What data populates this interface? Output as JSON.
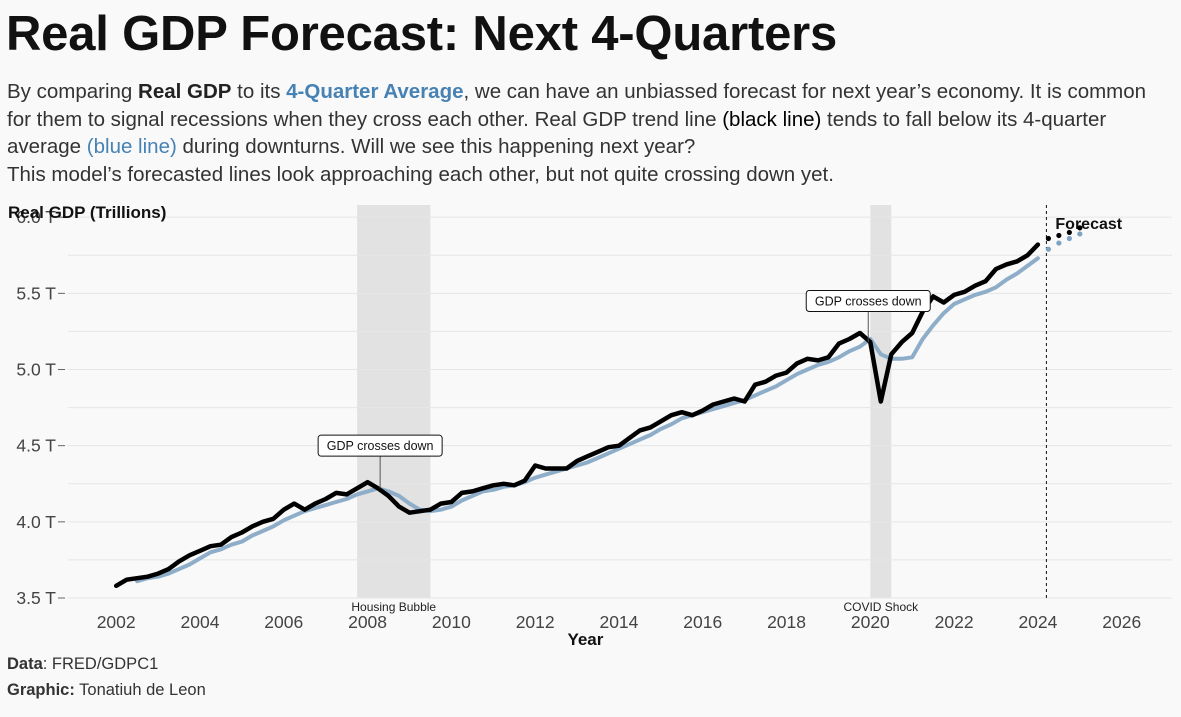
{
  "header": {
    "title": "Real GDP Forecast: Next 4-Quarters",
    "subtitle": {
      "p1": "By comparing ",
      "real_gdp": "Real GDP",
      "p2": " to its ",
      "avg": "4-Quarter Average",
      "p3": ", we can have an unbiassed forecast for next year’s economy. It is common for them to signal recessions when they cross each other. Real GDP trend line ",
      "black_line": "(black line)",
      "p4": " tends to fall below its 4-quarter average ",
      "blue_line": "(blue line)",
      "p5": " during downturns. Will we see this happening next year?",
      "p6": "This model’s forecasted lines look approaching each other, but not quite crossing down yet."
    }
  },
  "footer": {
    "data_label": "Data",
    "data_value": ": FRED/GDPC1",
    "graphic_label": "Graphic:",
    "graphic_value": " Tonatiuh de Leon"
  },
  "colors": {
    "gdp_line": "#000000",
    "avg_line": "#8eadc9",
    "avg_forecast": "#7ea2c4",
    "recession_shade": "#e2e2e2",
    "grid": "#e6e6e6"
  },
  "chart_data": {
    "type": "line",
    "ylabel": "Real GDP (Trillions)",
    "xlabel": "Year",
    "xlim": [
      2000.85,
      2027.2
    ],
    "ylim": [
      3.5,
      6.08
    ],
    "x_ticks": [
      2002,
      2004,
      2006,
      2008,
      2010,
      2012,
      2014,
      2016,
      2018,
      2020,
      2022,
      2024,
      2026
    ],
    "x_tick_labels": [
      "2002",
      "2004",
      "2006",
      "2008",
      "2010",
      "2012",
      "2014",
      "2016",
      "2018",
      "2020",
      "2022",
      "2024",
      "2026"
    ],
    "y_ticks": [
      3.5,
      4.0,
      4.5,
      5.0,
      5.5,
      6.0
    ],
    "y_tick_labels": [
      "3.5 T",
      "4.0 T",
      "4.5 T",
      "5.0 T",
      "5.5 T",
      "6.0 T"
    ],
    "grid": true,
    "recessions": [
      {
        "label": "Housing Bubble",
        "start": 2007.75,
        "end": 2009.5
      },
      {
        "label": "COVID Shock",
        "start": 2020.0,
        "end": 2020.5
      }
    ],
    "annotations": [
      {
        "text": "GDP crosses down",
        "x": 2008.3,
        "y": 4.22,
        "label_y": 4.5
      },
      {
        "text": "GDP crosses down",
        "x": 2019.95,
        "y": 5.18,
        "label_y": 5.45
      }
    ],
    "forecast": {
      "label": "Forecast",
      "start": 2024.25
    },
    "series": [
      {
        "name": "Real GDP",
        "x": [
          2002.0,
          2002.25,
          2002.5,
          2002.75,
          2003.0,
          2003.25,
          2003.5,
          2003.75,
          2004.0,
          2004.25,
          2004.5,
          2004.75,
          2005.0,
          2005.25,
          2005.5,
          2005.75,
          2006.0,
          2006.25,
          2006.5,
          2006.75,
          2007.0,
          2007.25,
          2007.5,
          2007.75,
          2008.0,
          2008.25,
          2008.5,
          2008.75,
          2009.0,
          2009.25,
          2009.5,
          2009.75,
          2010.0,
          2010.25,
          2010.5,
          2010.75,
          2011.0,
          2011.25,
          2011.5,
          2011.75,
          2012.0,
          2012.25,
          2012.5,
          2012.75,
          2013.0,
          2013.25,
          2013.5,
          2013.75,
          2014.0,
          2014.25,
          2014.5,
          2014.75,
          2015.0,
          2015.25,
          2015.5,
          2015.75,
          2016.0,
          2016.25,
          2016.5,
          2016.75,
          2017.0,
          2017.25,
          2017.5,
          2017.75,
          2018.0,
          2018.25,
          2018.5,
          2018.75,
          2019.0,
          2019.25,
          2019.5,
          2019.75,
          2020.0,
          2020.25,
          2020.5,
          2020.75,
          2021.0,
          2021.25,
          2021.5,
          2021.75,
          2022.0,
          2022.25,
          2022.5,
          2022.75,
          2023.0,
          2023.25,
          2023.5,
          2023.75,
          2024.0
        ],
        "y": [
          3.58,
          3.62,
          3.63,
          3.64,
          3.66,
          3.69,
          3.74,
          3.78,
          3.81,
          3.84,
          3.85,
          3.9,
          3.93,
          3.97,
          4.0,
          4.02,
          4.08,
          4.12,
          4.08,
          4.12,
          4.15,
          4.19,
          4.18,
          4.22,
          4.26,
          4.22,
          4.17,
          4.1,
          4.06,
          4.07,
          4.08,
          4.12,
          4.13,
          4.19,
          4.2,
          4.22,
          4.24,
          4.25,
          4.24,
          4.27,
          4.37,
          4.35,
          4.35,
          4.35,
          4.4,
          4.43,
          4.46,
          4.49,
          4.5,
          4.55,
          4.6,
          4.62,
          4.66,
          4.7,
          4.72,
          4.7,
          4.73,
          4.77,
          4.79,
          4.81,
          4.79,
          4.9,
          4.92,
          4.96,
          4.98,
          5.04,
          5.07,
          5.06,
          5.08,
          5.17,
          5.2,
          5.24,
          5.18,
          4.79,
          5.1,
          5.18,
          5.24,
          5.38,
          5.48,
          5.44,
          5.49,
          5.51,
          5.55,
          5.58,
          5.66,
          5.69,
          5.71,
          5.75,
          5.82
        ]
      },
      {
        "name": "4-Quarter Average",
        "x": [
          2002.5,
          2002.75,
          2003.0,
          2003.25,
          2003.5,
          2003.75,
          2004.0,
          2004.25,
          2004.5,
          2004.75,
          2005.0,
          2005.25,
          2005.5,
          2005.75,
          2006.0,
          2006.25,
          2006.5,
          2006.75,
          2007.0,
          2007.25,
          2007.5,
          2007.75,
          2008.0,
          2008.25,
          2008.5,
          2008.75,
          2009.0,
          2009.25,
          2009.5,
          2009.75,
          2010.0,
          2010.25,
          2010.5,
          2010.75,
          2011.0,
          2011.25,
          2011.5,
          2011.75,
          2012.0,
          2012.25,
          2012.5,
          2012.75,
          2013.0,
          2013.25,
          2013.5,
          2013.75,
          2014.0,
          2014.25,
          2014.5,
          2014.75,
          2015.0,
          2015.25,
          2015.5,
          2015.75,
          2016.0,
          2016.25,
          2016.5,
          2016.75,
          2017.0,
          2017.25,
          2017.5,
          2017.75,
          2018.0,
          2018.25,
          2018.5,
          2018.75,
          2019.0,
          2019.25,
          2019.5,
          2019.75,
          2020.0,
          2020.25,
          2020.5,
          2020.75,
          2021.0,
          2021.25,
          2021.5,
          2021.75,
          2022.0,
          2022.25,
          2022.5,
          2022.75,
          2023.0,
          2023.25,
          2023.5,
          2023.75,
          2024.0
        ],
        "y": [
          3.61,
          3.63,
          3.64,
          3.66,
          3.69,
          3.72,
          3.76,
          3.8,
          3.82,
          3.85,
          3.87,
          3.91,
          3.94,
          3.97,
          4.01,
          4.04,
          4.07,
          4.09,
          4.11,
          4.13,
          4.15,
          4.18,
          4.2,
          4.22,
          4.2,
          4.17,
          4.12,
          4.08,
          4.07,
          4.08,
          4.1,
          4.14,
          4.17,
          4.2,
          4.21,
          4.23,
          4.24,
          4.26,
          4.29,
          4.31,
          4.33,
          4.35,
          4.37,
          4.39,
          4.42,
          4.45,
          4.48,
          4.51,
          4.54,
          4.57,
          4.61,
          4.64,
          4.68,
          4.7,
          4.72,
          4.74,
          4.76,
          4.78,
          4.8,
          4.83,
          4.86,
          4.89,
          4.93,
          4.97,
          5.0,
          5.03,
          5.05,
          5.08,
          5.12,
          5.15,
          5.2,
          5.1,
          5.07,
          5.07,
          5.08,
          5.2,
          5.29,
          5.37,
          5.43,
          5.46,
          5.49,
          5.51,
          5.54,
          5.59,
          5.63,
          5.68,
          5.73
        ]
      },
      {
        "name": "Real GDP Forecast",
        "x": [
          2024.25,
          2024.5,
          2024.75,
          2025.0
        ],
        "y": [
          5.86,
          5.88,
          5.9,
          5.93
        ]
      },
      {
        "name": "4-Quarter Average Forecast",
        "x": [
          2024.25,
          2024.5,
          2024.75,
          2025.0
        ],
        "y": [
          5.79,
          5.83,
          5.86,
          5.89
        ]
      }
    ]
  }
}
